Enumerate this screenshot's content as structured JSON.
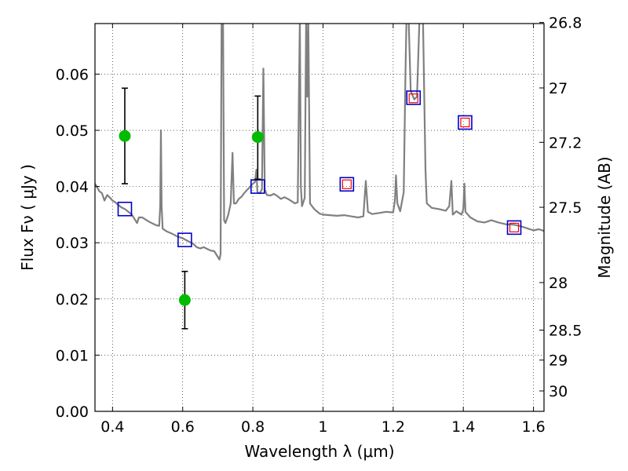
{
  "chart_data": {
    "type": "scatter",
    "xlabel": "Wavelength  λ (μm)",
    "ylabel": "Flux  Fν  ( μJy )",
    "y2label": "Magnitude (AB)",
    "xlim": [
      0.35,
      1.63
    ],
    "ylim": [
      0.0,
      0.069
    ],
    "grid": true,
    "x_ticks": [
      0.4,
      0.6,
      0.8,
      1.0,
      1.2,
      1.4,
      1.6
    ],
    "x_tick_labels": [
      "0.4",
      "0.6",
      "0.8",
      "1",
      "1.2",
      "1.4",
      "1.6"
    ],
    "y_ticks": [
      0.0,
      0.01,
      0.02,
      0.03,
      0.04,
      0.05,
      0.06
    ],
    "y_tick_labels": [
      "0.00",
      "0.01",
      "0.02",
      "0.03",
      "0.04",
      "0.05",
      "0.06"
    ],
    "y2_ticks": [
      {
        "label": "26.8",
        "mag": 26.8
      },
      {
        "label": "27",
        "mag": 27.0
      },
      {
        "label": "27.2",
        "mag": 27.2
      },
      {
        "label": "27.5",
        "mag": 27.5
      },
      {
        "label": "28",
        "mag": 28.0
      },
      {
        "label": "28.5",
        "mag": 28.5
      },
      {
        "label": "29",
        "mag": 29.0
      },
      {
        "label": "30",
        "mag": 30.0
      }
    ],
    "observed_points": [
      {
        "x": 0.435,
        "y": 0.049,
        "yerr_low": 0.0405,
        "yerr_high": 0.0575
      },
      {
        "x": 0.606,
        "y": 0.0198,
        "yerr_low": 0.0147,
        "yerr_high": 0.0249
      },
      {
        "x": 0.814,
        "y": 0.0488,
        "yerr_low": 0.0413,
        "yerr_high": 0.0561
      }
    ],
    "model_photometry": [
      {
        "x": 0.435,
        "y": 0.036
      },
      {
        "x": 0.606,
        "y": 0.0305
      },
      {
        "x": 0.814,
        "y": 0.04
      },
      {
        "x": 1.068,
        "y": 0.0404
      },
      {
        "x": 1.258,
        "y": 0.0558
      },
      {
        "x": 1.405,
        "y": 0.0514
      },
      {
        "x": 1.545,
        "y": 0.0327
      }
    ],
    "predicted_photometry": [
      {
        "x": 1.068,
        "y": 0.0404
      },
      {
        "x": 1.258,
        "y": 0.0557
      },
      {
        "x": 1.405,
        "y": 0.0514
      },
      {
        "x": 1.545,
        "y": 0.0327
      }
    ],
    "spectrum": [
      [
        0.35,
        0.0405
      ],
      [
        0.355,
        0.04
      ],
      [
        0.362,
        0.0392
      ],
      [
        0.37,
        0.0388
      ],
      [
        0.377,
        0.0375
      ],
      [
        0.385,
        0.0385
      ],
      [
        0.393,
        0.038
      ],
      [
        0.4,
        0.0375
      ],
      [
        0.408,
        0.0372
      ],
      [
        0.415,
        0.0368
      ],
      [
        0.425,
        0.0363
      ],
      [
        0.435,
        0.036
      ],
      [
        0.445,
        0.0355
      ],
      [
        0.455,
        0.035
      ],
      [
        0.465,
        0.034
      ],
      [
        0.47,
        0.0335
      ],
      [
        0.475,
        0.0345
      ],
      [
        0.485,
        0.0345
      ],
      [
        0.495,
        0.0341
      ],
      [
        0.505,
        0.0337
      ],
      [
        0.515,
        0.0334
      ],
      [
        0.525,
        0.0331
      ],
      [
        0.533,
        0.033
      ],
      [
        0.536,
        0.0365
      ],
      [
        0.538,
        0.05
      ],
      [
        0.54,
        0.0365
      ],
      [
        0.543,
        0.0325
      ],
      [
        0.555,
        0.032
      ],
      [
        0.57,
        0.0316
      ],
      [
        0.585,
        0.0311
      ],
      [
        0.6,
        0.0308
      ],
      [
        0.615,
        0.0303
      ],
      [
        0.63,
        0.0298
      ],
      [
        0.64,
        0.0292
      ],
      [
        0.65,
        0.029
      ],
      [
        0.66,
        0.0292
      ],
      [
        0.67,
        0.0289
      ],
      [
        0.68,
        0.0286
      ],
      [
        0.69,
        0.0285
      ],
      [
        0.7,
        0.0275
      ],
      [
        0.705,
        0.027
      ],
      [
        0.708,
        0.028
      ],
      [
        0.711,
        0.07
      ],
      [
        0.715,
        0.07
      ],
      [
        0.718,
        0.034
      ],
      [
        0.722,
        0.0335
      ],
      [
        0.73,
        0.035
      ],
      [
        0.737,
        0.037
      ],
      [
        0.742,
        0.046
      ],
      [
        0.746,
        0.037
      ],
      [
        0.752,
        0.037
      ],
      [
        0.76,
        0.0378
      ],
      [
        0.768,
        0.0382
      ],
      [
        0.775,
        0.0388
      ],
      [
        0.782,
        0.0393
      ],
      [
        0.79,
        0.0398
      ],
      [
        0.798,
        0.0404
      ],
      [
        0.806,
        0.0408
      ],
      [
        0.81,
        0.043
      ],
      [
        0.813,
        0.039
      ],
      [
        0.82,
        0.0388
      ],
      [
        0.826,
        0.0395
      ],
      [
        0.83,
        0.061
      ],
      [
        0.834,
        0.0395
      ],
      [
        0.84,
        0.0385
      ],
      [
        0.85,
        0.0384
      ],
      [
        0.86,
        0.0387
      ],
      [
        0.87,
        0.0383
      ],
      [
        0.88,
        0.0378
      ],
      [
        0.89,
        0.0381
      ],
      [
        0.9,
        0.0378
      ],
      [
        0.91,
        0.0374
      ],
      [
        0.92,
        0.037
      ],
      [
        0.928,
        0.0372
      ],
      [
        0.932,
        0.06
      ],
      [
        0.934,
        0.07
      ],
      [
        0.937,
        0.04
      ],
      [
        0.94,
        0.0365
      ],
      [
        0.948,
        0.038
      ],
      [
        0.952,
        0.07
      ],
      [
        0.955,
        0.056
      ],
      [
        0.958,
        0.07
      ],
      [
        0.963,
        0.037
      ],
      [
        0.975,
        0.036
      ],
      [
        0.99,
        0.0352
      ],
      [
        1.0,
        0.035
      ],
      [
        1.02,
        0.0349
      ],
      [
        1.04,
        0.0348
      ],
      [
        1.06,
        0.0349
      ],
      [
        1.08,
        0.0347
      ],
      [
        1.1,
        0.0345
      ],
      [
        1.115,
        0.0347
      ],
      [
        1.122,
        0.041
      ],
      [
        1.128,
        0.0355
      ],
      [
        1.14,
        0.0351
      ],
      [
        1.16,
        0.0353
      ],
      [
        1.18,
        0.0355
      ],
      [
        1.2,
        0.0354
      ],
      [
        1.205,
        0.0375
      ],
      [
        1.208,
        0.042
      ],
      [
        1.212,
        0.037
      ],
      [
        1.22,
        0.0356
      ],
      [
        1.23,
        0.039
      ],
      [
        1.235,
        0.06
      ],
      [
        1.238,
        0.07
      ],
      [
        1.244,
        0.07
      ],
      [
        1.25,
        0.057
      ],
      [
        1.26,
        0.0555
      ],
      [
        1.268,
        0.056
      ],
      [
        1.275,
        0.07
      ],
      [
        1.285,
        0.07
      ],
      [
        1.292,
        0.043
      ],
      [
        1.296,
        0.037
      ],
      [
        1.31,
        0.0362
      ],
      [
        1.33,
        0.036
      ],
      [
        1.35,
        0.0357
      ],
      [
        1.36,
        0.0365
      ],
      [
        1.366,
        0.041
      ],
      [
        1.37,
        0.035
      ],
      [
        1.38,
        0.0356
      ],
      [
        1.395,
        0.035
      ],
      [
        1.4,
        0.036
      ],
      [
        1.403,
        0.0405
      ],
      [
        1.406,
        0.0355
      ],
      [
        1.42,
        0.0345
      ],
      [
        1.44,
        0.0338
      ],
      [
        1.46,
        0.0336
      ],
      [
        1.48,
        0.034
      ],
      [
        1.5,
        0.0336
      ],
      [
        1.52,
        0.0333
      ],
      [
        1.545,
        0.0332
      ],
      [
        1.56,
        0.033
      ],
      [
        1.58,
        0.0326
      ],
      [
        1.6,
        0.0322
      ],
      [
        1.615,
        0.0324
      ],
      [
        1.63,
        0.0321
      ]
    ],
    "colors": {
      "spectrum": "#808080",
      "observed": "#00bb00",
      "error_bar": "#000000",
      "model_box": "#0000cc",
      "predicted_box": "#ff0000"
    }
  }
}
